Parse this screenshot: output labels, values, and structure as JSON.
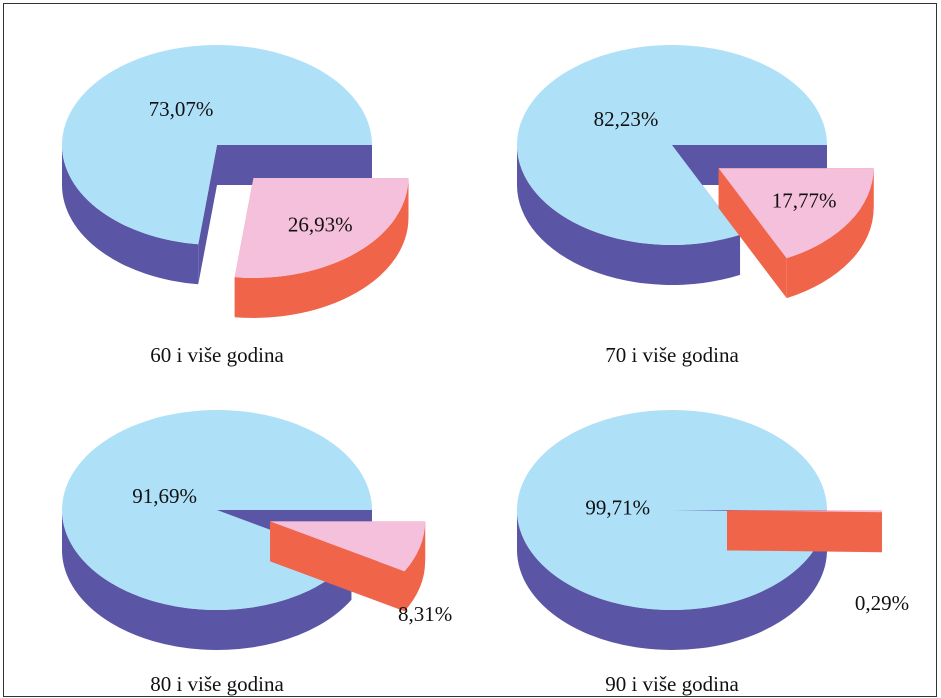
{
  "chart_data": [
    {
      "type": "pie",
      "title": "60 i više godina",
      "values": [
        73.07,
        26.93
      ],
      "value_labels": [
        "73,07%",
        "26,93%"
      ],
      "colors": [
        "#aee0f8",
        "#f5c0dc"
      ],
      "side_colors": [
        "#5a55a5",
        "#f0644a"
      ]
    },
    {
      "type": "pie",
      "title": "70 i više godina",
      "values": [
        82.23,
        17.77
      ],
      "value_labels": [
        "82,23%",
        "17,77%"
      ],
      "colors": [
        "#aee0f8",
        "#f5c0dc"
      ],
      "side_colors": [
        "#5a55a5",
        "#f0644a"
      ]
    },
    {
      "type": "pie",
      "title": "80 i više godina",
      "values": [
        91.69,
        8.31
      ],
      "value_labels": [
        "91,69%",
        "8,31%"
      ],
      "colors": [
        "#aee0f8",
        "#f5c0dc"
      ],
      "side_colors": [
        "#5a55a5",
        "#f0644a"
      ]
    },
    {
      "type": "pie",
      "title": "90 i više godina",
      "values": [
        99.71,
        0.29
      ],
      "value_labels": [
        "99,71%",
        "0,29%"
      ],
      "colors": [
        "#aee0f8",
        "#f5c0dc"
      ],
      "side_colors": [
        "#5a55a5",
        "#f0644a"
      ]
    }
  ]
}
